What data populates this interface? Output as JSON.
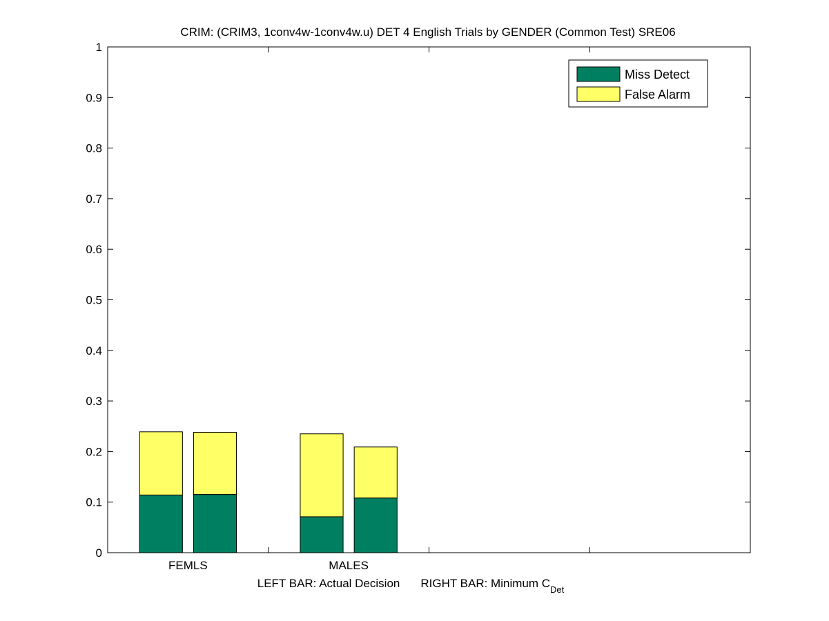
{
  "chart_data": {
    "type": "bar",
    "stacked": true,
    "title": "CRIM: (CRIM3, 1conv4w-1conv4w.u) DET 4 English Trials by GENDER (Common Test) SRE06",
    "xlabel": {
      "left_text": "LEFT BAR: Actual Decision",
      "right_text": "RIGHT BAR: Minimum C",
      "right_subscript": "Det"
    },
    "ylabel": "",
    "ylim": [
      0,
      1
    ],
    "yticks": [
      "0",
      "0.1",
      "0.2",
      "0.3",
      "0.4",
      "0.5",
      "0.6",
      "0.7",
      "0.8",
      "0.9",
      "1"
    ],
    "categories": [
      "FEMLS",
      "MALES"
    ],
    "bars": [
      {
        "category": "FEMLS",
        "bar": "Actual Decision",
        "miss": 0.114,
        "total": 0.239
      },
      {
        "category": "FEMLS",
        "bar": "Minimum CDet",
        "miss": 0.115,
        "total": 0.238
      },
      {
        "category": "MALES",
        "bar": "Actual Decision",
        "miss": 0.071,
        "total": 0.235
      },
      {
        "category": "MALES",
        "bar": "Minimum CDet",
        "miss": 0.108,
        "total": 0.209
      }
    ],
    "series": [
      {
        "name": "Miss Detect",
        "color": "#008060"
      },
      {
        "name": "False Alarm",
        "color": "#ffff66"
      }
    ],
    "legend_position": "top-right",
    "grid": false
  }
}
